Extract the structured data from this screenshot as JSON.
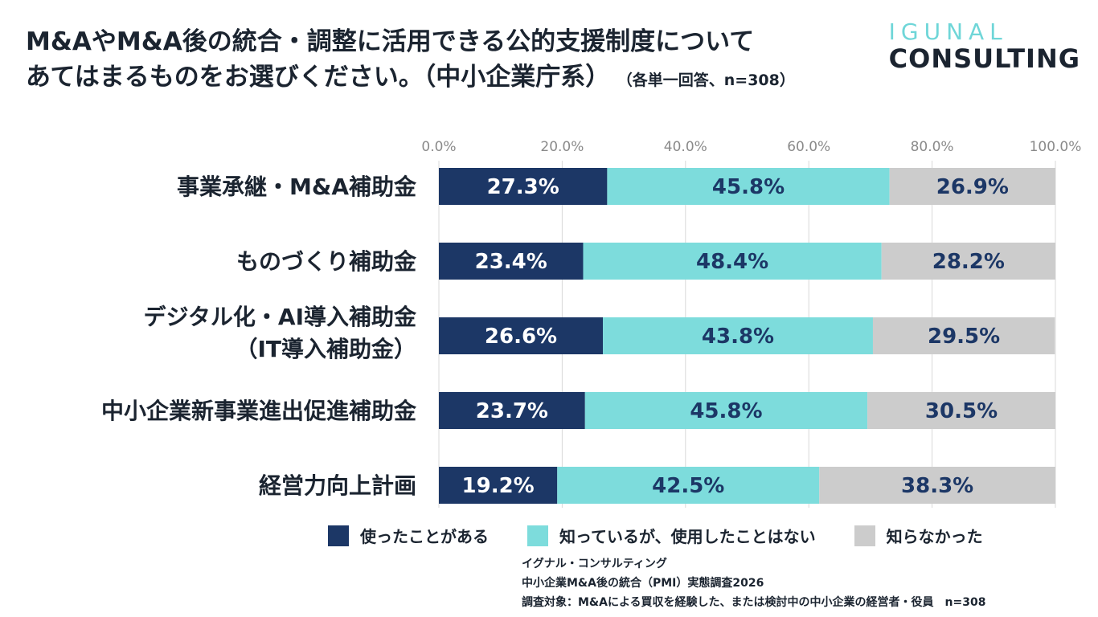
{
  "header": {
    "title_line1": "M&AやM&A後の統合・調整に活用できる公的支援制度について",
    "title_line2": "あてはまるものをお選びください。（中小企業庁系）",
    "subtitle": "（各単一回答、n=308）"
  },
  "logo": {
    "top": "IGUNAL",
    "bottom": "CONSULTING"
  },
  "colors": {
    "used": "#1c3766",
    "known": "#7ddcdc",
    "unknown": "#cccccc",
    "label_text": "#1c3766",
    "label_light": "#ffffff"
  },
  "chart_data": {
    "type": "bar",
    "orientation": "horizontal",
    "stacked": true,
    "xlim": [
      0,
      100
    ],
    "ticks": [
      "0.0%",
      "20.0%",
      "40.0%",
      "60.0%",
      "80.0%",
      "100.0%"
    ],
    "categories": [
      [
        "事業承継・M&A補助金"
      ],
      [
        "ものづくり補助金"
      ],
      [
        "デジタル化・AI導入補助金",
        "（IT導入補助金）"
      ],
      [
        "中小企業新事業進出促進補助金"
      ],
      [
        "経営力向上計画"
      ]
    ],
    "series": [
      {
        "name": "使ったことがある",
        "values": [
          27.3,
          23.4,
          26.6,
          23.7,
          19.2
        ],
        "labels": [
          "27.3%",
          "23.4%",
          "26.6%",
          "23.7%",
          "19.2%"
        ]
      },
      {
        "name": "知っているが、使用したことはない",
        "values": [
          45.8,
          48.4,
          43.8,
          45.8,
          42.5
        ],
        "labels": [
          "45.8%",
          "48.4%",
          "43.8%",
          "45.8%",
          "42.5%"
        ]
      },
      {
        "name": "知らなかった",
        "values": [
          26.9,
          28.2,
          29.5,
          30.5,
          38.3
        ],
        "labels": [
          "26.9%",
          "28.2%",
          "29.5%",
          "30.5%",
          "38.3%"
        ]
      }
    ],
    "legend": "bottom"
  },
  "source": {
    "line1": "イグナル・コンサルティング",
    "line2": "中小企業M&A後の統合（PMI）実態調査2026",
    "line3": "調査対象：M&Aによる買収を経験した、または検討中の中小企業の経営者・役員　n=308"
  }
}
